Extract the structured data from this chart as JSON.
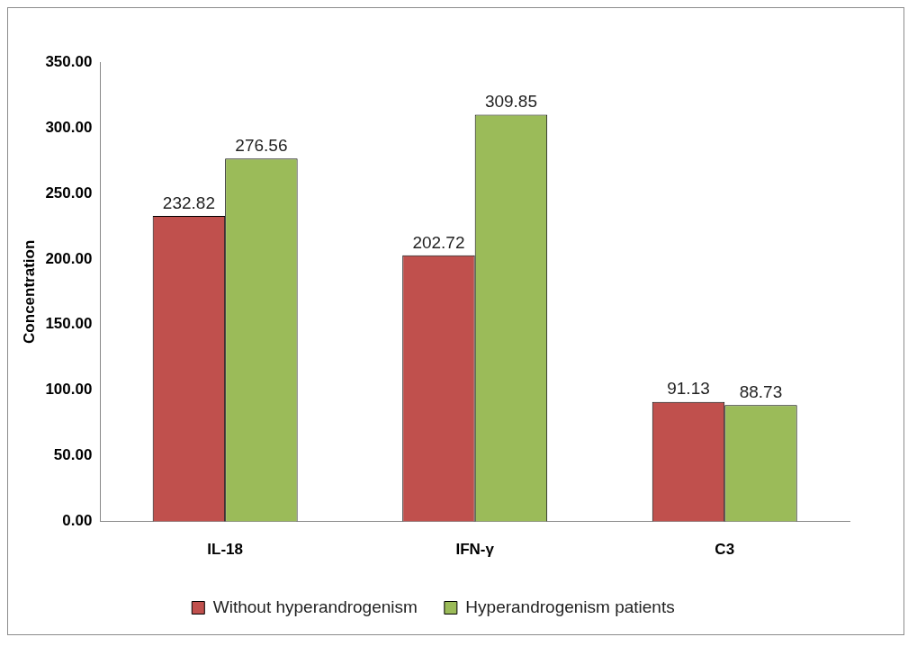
{
  "chart_data": {
    "type": "bar",
    "ylabel": "Concentration",
    "categories": [
      "IL-18",
      "IFN-γ",
      "C3"
    ],
    "series": [
      {
        "name": "Without hyperandrogenism",
        "color": "#c0504d",
        "values": [
          232.82,
          202.72,
          91.13
        ]
      },
      {
        "name": "Hyperandrogenism patients",
        "color": "#9bbb59",
        "values": [
          276.56,
          309.85,
          88.73
        ]
      }
    ],
    "ylim": [
      0,
      350
    ],
    "yticks": [
      {
        "value": 0,
        "label": "0.00"
      },
      {
        "value": 50,
        "label": "50.00"
      },
      {
        "value": 100,
        "label": "100.00"
      },
      {
        "value": 150,
        "label": "150.00"
      },
      {
        "value": 200,
        "label": "200.00"
      },
      {
        "value": 250,
        "label": "250.00"
      },
      {
        "value": 300,
        "label": "300.00"
      },
      {
        "value": 350,
        "label": "350.00"
      }
    ],
    "grid": false,
    "legend": "bottom",
    "data_labels": true
  }
}
